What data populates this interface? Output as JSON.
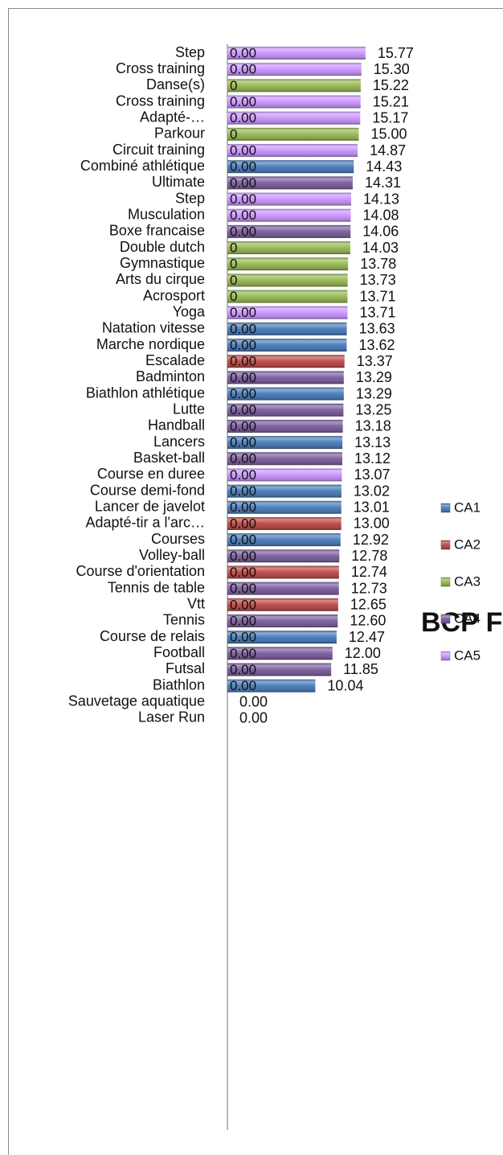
{
  "chart_data": {
    "type": "bar",
    "orientation": "horizontal",
    "title": "BCP F",
    "categories": [
      "Step",
      "Cross training",
      "Danse(s)",
      "Cross training",
      "Adapté-…",
      "Parkour",
      "Circuit training",
      "Combiné athlétique",
      "Ultimate",
      "Step",
      "Musculation",
      "Boxe francaise",
      "Double dutch",
      "Gymnastique",
      "Arts du cirque",
      "Acrosport",
      "Yoga",
      "Natation vitesse",
      "Marche nordique",
      "Escalade",
      "Badminton",
      "Biathlon athlétique",
      "Lutte",
      "Handball",
      "Lancers",
      "Basket-ball",
      "Course en duree",
      "Course demi-fond",
      "Lancer de javelot",
      "Adapté-tir a l'arc…",
      "Courses",
      "Volley-ball",
      "Course d'orientation",
      "Tennis de table",
      "Vtt",
      "Tennis",
      "Course de relais",
      "Football",
      "Futsal",
      "Biathlon",
      "Sauvetage aquatique",
      "Laser Run"
    ],
    "series": [
      {
        "name": "CA1",
        "color": "#4f81bd",
        "values": [
          null,
          null,
          null,
          null,
          null,
          null,
          null,
          14.43,
          null,
          null,
          null,
          null,
          null,
          null,
          null,
          null,
          null,
          13.63,
          13.62,
          null,
          null,
          13.29,
          null,
          null,
          13.13,
          null,
          null,
          13.02,
          13.01,
          null,
          12.92,
          null,
          null,
          null,
          null,
          null,
          12.47,
          null,
          null,
          10.04,
          0,
          0
        ]
      },
      {
        "name": "CA2",
        "color": "#c0504d",
        "values": [
          null,
          null,
          null,
          null,
          null,
          null,
          null,
          null,
          null,
          null,
          null,
          null,
          null,
          null,
          null,
          null,
          null,
          null,
          null,
          13.37,
          null,
          null,
          null,
          null,
          null,
          null,
          null,
          null,
          null,
          13.0,
          null,
          null,
          12.74,
          null,
          12.65,
          null,
          null,
          null,
          null,
          null,
          null,
          null
        ]
      },
      {
        "name": "CA3",
        "color": "#9bbb59",
        "values": [
          null,
          null,
          15.22,
          null,
          null,
          15.0,
          null,
          null,
          null,
          null,
          null,
          null,
          14.03,
          13.78,
          13.73,
          13.71,
          null,
          null,
          null,
          null,
          null,
          null,
          null,
          null,
          null,
          null,
          null,
          null,
          null,
          null,
          null,
          null,
          null,
          null,
          null,
          null,
          null,
          null,
          null,
          null,
          null,
          null
        ]
      },
      {
        "name": "CA4",
        "color": "#8064a2",
        "values": [
          null,
          null,
          null,
          null,
          null,
          null,
          null,
          null,
          14.31,
          null,
          null,
          14.06,
          null,
          null,
          null,
          null,
          null,
          null,
          null,
          null,
          13.29,
          null,
          13.25,
          13.18,
          null,
          13.12,
          null,
          null,
          null,
          null,
          null,
          12.78,
          null,
          12.73,
          null,
          12.6,
          null,
          12.0,
          11.85,
          null,
          null,
          null
        ]
      },
      {
        "name": "CA5",
        "color": "#cc99ff",
        "values": [
          15.77,
          15.3,
          null,
          15.21,
          15.17,
          null,
          14.87,
          null,
          null,
          14.13,
          14.08,
          null,
          null,
          null,
          null,
          null,
          13.71,
          null,
          null,
          null,
          null,
          null,
          null,
          null,
          null,
          null,
          13.07,
          null,
          null,
          null,
          null,
          null,
          null,
          null,
          null,
          null,
          null,
          null,
          null,
          null,
          null,
          null
        ]
      }
    ],
    "value_labels": [
      "15.77",
      "15.30",
      "15.22",
      "15.21",
      "15.17",
      "15.00",
      "14.87",
      "14.43",
      "14.31",
      "14.13",
      "14.08",
      "14.06",
      "14.03",
      "13.78",
      "13.73",
      "13.71",
      "13.71",
      "13.63",
      "13.62",
      "13.37",
      "13.29",
      "13.29",
      "13.25",
      "13.18",
      "13.13",
      "13.12",
      "13.07",
      "13.02",
      "13.01",
      "13.00",
      "12.92",
      "12.78",
      "12.74",
      "12.73",
      "12.65",
      "12.60",
      "12.47",
      "12.00",
      "11.85",
      "10.04",
      "0.00",
      "0.00"
    ],
    "inner_labels": [
      "0.00",
      "0.00",
      "0",
      "0.00",
      "0.00",
      "0",
      "0.00",
      "0.00",
      "0.00",
      "0.00",
      "0.00",
      "0.00",
      "0",
      "0",
      "0",
      "0",
      "0.00",
      "0.00",
      "0.00",
      "0.00",
      "0.00",
      "0.00",
      "0.00",
      "0.00",
      "0.00",
      "0.00",
      "0.00",
      "0.00",
      "0.00",
      "0.00",
      "0.00",
      "0.00",
      "0.00",
      "0.00",
      "0.00",
      "0.00",
      "0.00",
      "0.00",
      "0.00",
      "0.00",
      null,
      null
    ],
    "xlim": [
      0,
      30
    ],
    "legend": "right"
  }
}
